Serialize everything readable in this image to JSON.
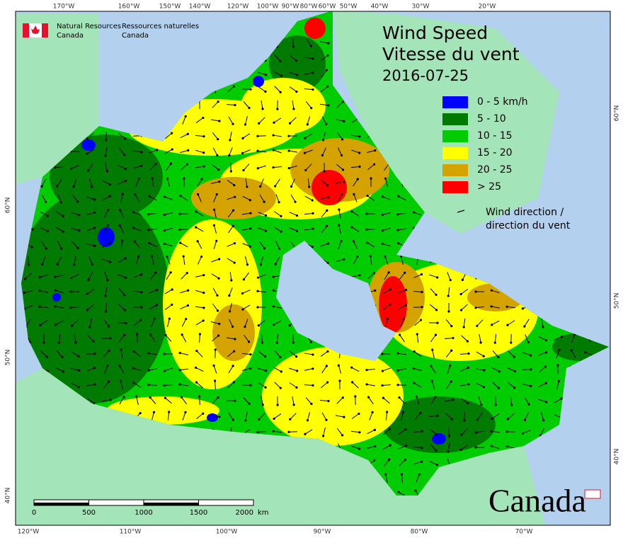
{
  "header": {
    "agency_en": [
      "Natural Resources",
      "Canada"
    ],
    "agency_fr": [
      "Ressources naturelles",
      "Canada"
    ]
  },
  "title": [
    "Wind Speed",
    "Vitesse du vent"
  ],
  "date": "2016-07-25",
  "legend": [
    {
      "label": "0 - 5 km/h",
      "color": "#0000ff"
    },
    {
      "label": "5 - 10",
      "color": "#007a00"
    },
    {
      "label": "10 - 15",
      "color": "#00cc00"
    },
    {
      "label": "15 - 20",
      "color": "#ffff00"
    },
    {
      "label": "20 - 25",
      "color": "#d4a300"
    },
    {
      "label": "> 25",
      "color": "#ff0000"
    }
  ],
  "wind_label": [
    "Wind direction /",
    "direction du vent"
  ],
  "top_labels": [
    "170°W",
    "160°W",
    "150°W",
    "140°W",
    "120°W",
    "100°W",
    "90°W",
    "80°W",
    "60°W",
    "50°W",
    "40°W",
    "30°W",
    "20°W"
  ],
  "bottom_labels": [
    "120°W",
    "110°W",
    "100°W",
    "90°W",
    "80°W",
    "70°W"
  ],
  "left_labels": [
    "60°N",
    "50°N",
    "40°N"
  ],
  "right_labels": [
    "60°N",
    "50°N",
    "40°N"
  ],
  "scale": {
    "ticks": [
      0,
      500,
      1000,
      1500,
      2000
    ],
    "unit": "km"
  },
  "wordmark": "Canada"
}
